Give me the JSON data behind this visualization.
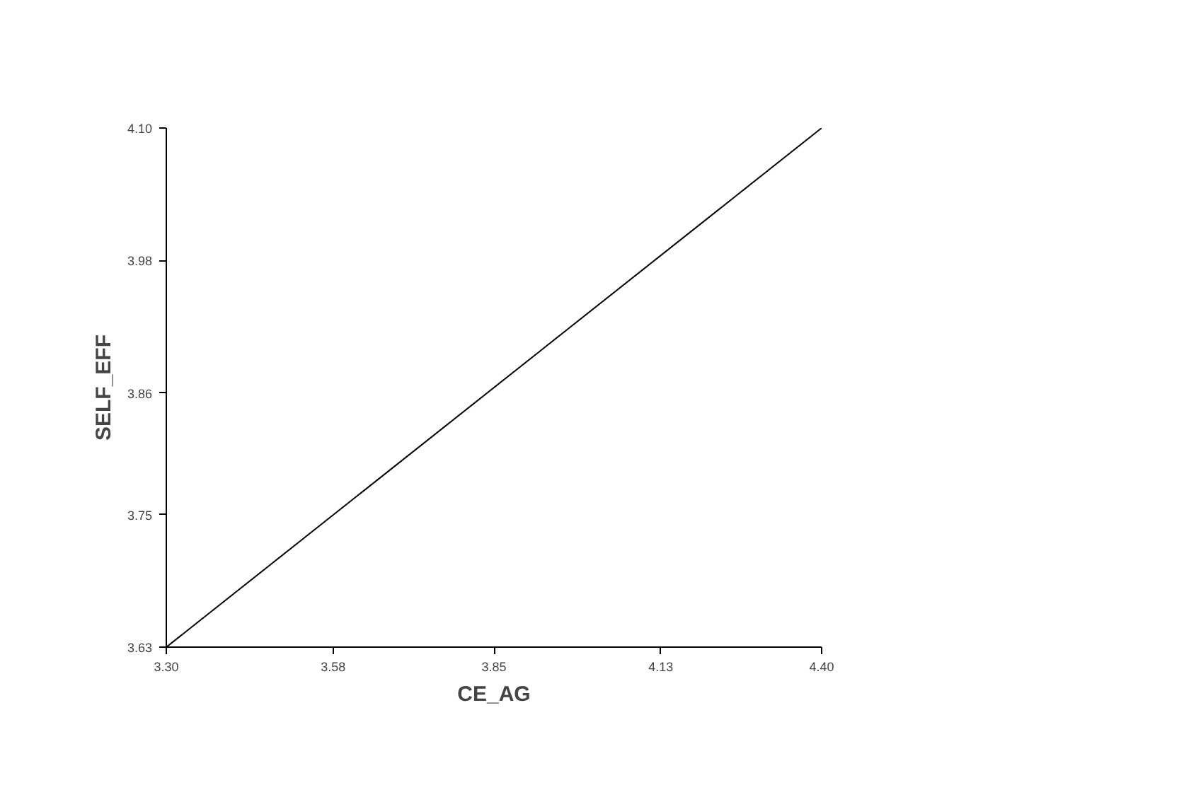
{
  "chart_data": {
    "type": "line",
    "xlabel": "CE_AG",
    "ylabel": "SELF_EFF",
    "x": [
      3.3,
      4.4
    ],
    "series": [
      {
        "color": "#000000",
        "values": [
          3.63,
          4.1
        ]
      }
    ],
    "xlim": [
      3.3,
      4.4
    ],
    "ylim": [
      3.63,
      4.1
    ],
    "xticks": [
      {
        "value": 3.3,
        "label": "3.30"
      },
      3.58,
      3.85,
      4.13,
      {
        "value": 4.4,
        "label": "4.40"
      }
    ],
    "yticks": [
      3.63,
      3.75,
      3.86,
      3.98,
      {
        "value": 4.1,
        "label": "4.10"
      }
    ],
    "grid": false,
    "marker": "none",
    "line_style": "solid"
  }
}
